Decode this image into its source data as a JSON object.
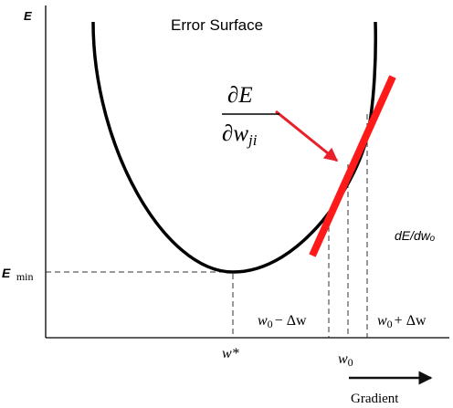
{
  "diagram": {
    "title": "Error Surface",
    "y_axis_label": "E",
    "min_label_base": "E",
    "min_label_sub": "min",
    "derivative_numerator": "∂E",
    "derivative_denominator_base": "∂w",
    "derivative_denominator_sub": "ji",
    "slope_label": "dE/dwₒ",
    "minimum_point_label": "w*",
    "w0_base": "w",
    "w0_sub": "0",
    "left_interval_base": "w",
    "left_interval_sub": "0",
    "left_interval_rest": "− Δw",
    "right_interval_base": "w",
    "right_interval_sub": "0",
    "right_interval_rest": "+ Δw",
    "gradient_label": "Gradient"
  },
  "colors": {
    "curve": "#000000",
    "tangent": "#ff1a1a",
    "arrow": "#e8202a",
    "dashed": "#333333"
  }
}
